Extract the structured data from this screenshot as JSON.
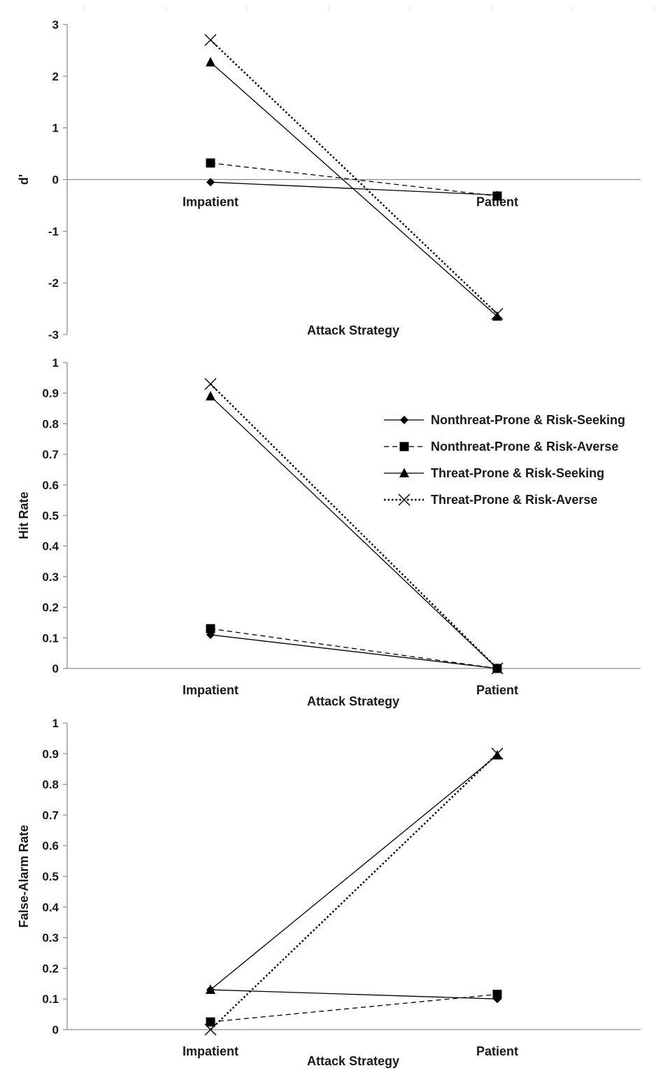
{
  "chart_data": [
    {
      "type": "line",
      "categories": [
        "Impatient",
        "Patient"
      ],
      "ylabel": "d'",
      "xlabel": "Attack Strategy",
      "ylim": [
        -3,
        3
      ],
      "yticks": [
        3,
        2,
        1,
        0,
        -1,
        -2,
        -3
      ],
      "series": [
        {
          "name": "Nonthreat-Prone & Risk-Seeking",
          "values": [
            -0.05,
            -0.3
          ]
        },
        {
          "name": "Nonthreat-Prone & Risk-Averse",
          "values": [
            0.32,
            -0.32
          ]
        },
        {
          "name": "Threat-Prone & Risk-Seeking",
          "values": [
            2.27,
            -2.65
          ]
        },
        {
          "name": "Threat-Prone & Risk-Averse",
          "values": [
            2.7,
            -2.6
          ]
        }
      ]
    },
    {
      "type": "line",
      "categories": [
        "Impatient",
        "Patient"
      ],
      "ylabel": "Hit Rate",
      "xlabel": "Attack Strategy",
      "ylim": [
        0,
        1
      ],
      "yticks": [
        "1",
        "0.9",
        "0.8",
        "0.7",
        "0.6",
        "0.5",
        "0.4",
        "0.3",
        "0.2",
        "0.1",
        "0"
      ],
      "legend": "right",
      "series": [
        {
          "name": "Nonthreat-Prone & Risk-Seeking",
          "values": [
            0.11,
            0.0
          ]
        },
        {
          "name": "Nonthreat-Prone & Risk-Averse",
          "values": [
            0.13,
            0.0
          ]
        },
        {
          "name": "Threat-Prone & Risk-Seeking",
          "values": [
            0.89,
            0.0
          ]
        },
        {
          "name": "Threat-Prone & Risk-Averse",
          "values": [
            0.93,
            0.0
          ]
        }
      ]
    },
    {
      "type": "line",
      "categories": [
        "Impatient",
        "Patient"
      ],
      "ylabel": "False-Alarm Rate",
      "xlabel": "Attack Strategy",
      "ylim": [
        0,
        1
      ],
      "yticks": [
        "1",
        "0.9",
        "0.8",
        "0.7",
        "0.6",
        "0.5",
        "0.4",
        "0.3",
        "0.2",
        "0.1",
        "0"
      ],
      "series": [
        {
          "name": "Nonthreat-Prone & Risk-Seeking",
          "values": [
            0.13,
            0.1
          ]
        },
        {
          "name": "Nonthreat-Prone & Risk-Averse",
          "values": [
            0.025,
            0.115
          ]
        },
        {
          "name": "Threat-Prone & Risk-Seeking",
          "values": [
            0.13,
            0.895
          ]
        },
        {
          "name": "Threat-Prone & Risk-Averse",
          "values": [
            0.0,
            0.9
          ]
        }
      ]
    }
  ],
  "series_styles": [
    {
      "marker": "diamond-icon",
      "dash": "solid",
      "color": "#000000"
    },
    {
      "marker": "square-icon",
      "dash": "dashed",
      "color": "#000000"
    },
    {
      "marker": "triangle-icon",
      "dash": "solid",
      "color": "#000000"
    },
    {
      "marker": "x-icon",
      "dash": "dotted",
      "color": "#000000"
    }
  ],
  "axis_color": "#8c8c8c"
}
